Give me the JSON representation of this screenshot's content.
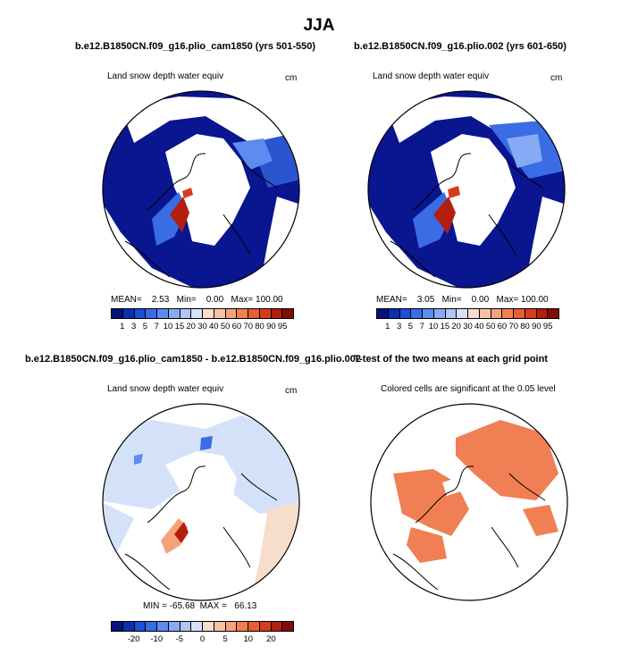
{
  "page": {
    "title": "JJA"
  },
  "panels": [
    {
      "id": "p1",
      "header": "b.e12.B1850CN.f09_g16.plio_cam1850 (yrs 501-550)",
      "subtitle_left": "Land snow depth water equiv",
      "subtitle_right": "cm",
      "stats": "MEAN=    2.53   Min=    0.00   Max= 100.00"
    },
    {
      "id": "p2",
      "header": "b.e12.B1850CN.f09_g16.plio.002 (yrs 601-650)",
      "subtitle_left": "Land snow depth water equiv",
      "subtitle_right": "cm",
      "stats": "MEAN=    3.05   Min=    0.00   Max= 100.00"
    },
    {
      "id": "p3",
      "header": "b.e12.B1850CN.f09_g16.plio_cam1850 - b.e12.B1850CN.f09_g16.plio.002",
      "subtitle_left": "Land snow depth water equiv",
      "subtitle_right": "cm",
      "stats": "MIN = -65.68  MAX =   66.13"
    },
    {
      "id": "p4",
      "header": "T-test of the two means at each grid point",
      "subtitle_left": "Colored cells are significant at the 0.05 level",
      "subtitle_right": "",
      "stats": ""
    }
  ],
  "colorbars": {
    "snow": {
      "colors": [
        "#08107a",
        "#0c2fb0",
        "#1c4fd6",
        "#3a6ce6",
        "#5d8bef",
        "#86aaf3",
        "#afc6f6",
        "#d4e2f9",
        "#f6ddcc",
        "#f8c2a4",
        "#f5a27b",
        "#f17f54",
        "#ea5c31",
        "#d63c1c",
        "#b21f0e",
        "#850a05"
      ],
      "tick_labels": [
        "1",
        "3",
        "5",
        "7",
        "10",
        "15",
        "20",
        "30",
        "40",
        "50",
        "60",
        "70",
        "80",
        "90",
        "95"
      ]
    },
    "diff": {
      "colors": [
        "#08107a",
        "#0c2fb0",
        "#1c4fd6",
        "#3a6ce6",
        "#5d8bef",
        "#86aaf3",
        "#afc6f6",
        "#d4e2f9",
        "#f6ddcc",
        "#f8c2a4",
        "#f5a27b",
        "#f17f54",
        "#ea5c31",
        "#d63c1c",
        "#b21f0e",
        "#850a05"
      ],
      "tick_labels": [
        "-20",
        "-10",
        "-5",
        "0",
        "5",
        "10",
        "20"
      ],
      "tick_positions": [
        2,
        4,
        6,
        8,
        10,
        12,
        14
      ]
    }
  },
  "chart_data": [
    {
      "type": "heatmap",
      "title": "Land snow depth water equiv",
      "units": "cm",
      "map": "polar stereographic, Northern Hemisphere",
      "scale_levels": [
        1,
        3,
        5,
        7,
        10,
        15,
        20,
        30,
        40,
        50,
        60,
        70,
        80,
        90,
        95
      ],
      "mean": 2.53,
      "min": 0.0,
      "max": 100.0
    },
    {
      "type": "heatmap",
      "title": "Land snow depth water equiv",
      "units": "cm",
      "map": "polar stereographic, Northern Hemisphere",
      "scale_levels": [
        1,
        3,
        5,
        7,
        10,
        15,
        20,
        30,
        40,
        50,
        60,
        70,
        80,
        90,
        95
      ],
      "mean": 3.05,
      "min": 0.0,
      "max": 100.0
    },
    {
      "type": "heatmap",
      "title": "Land snow depth water equiv",
      "units": "cm",
      "map": "polar stereographic, Northern Hemisphere",
      "scale_levels": [
        -20,
        -10,
        -5,
        0,
        5,
        10,
        20
      ],
      "min": -65.68,
      "max": 66.13
    },
    {
      "type": "heatmap",
      "title": "Colored cells are significant at the 0.05 level",
      "map": "polar stereographic, Northern Hemisphere",
      "significance_level": 0.05
    }
  ]
}
